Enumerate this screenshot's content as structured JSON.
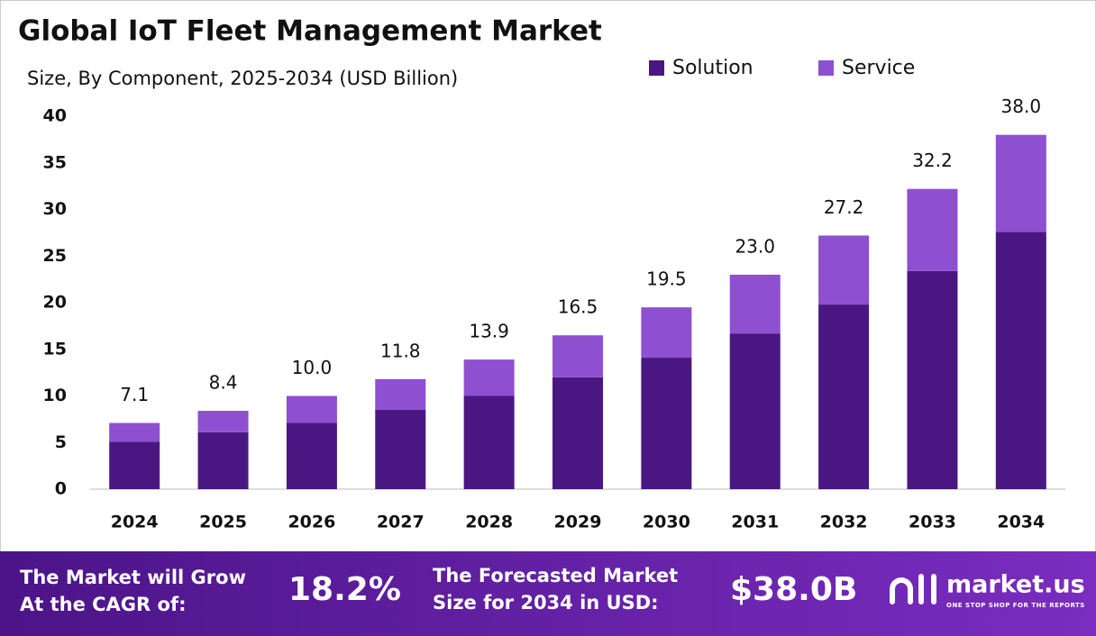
{
  "chart_data": {
    "type": "stacked_bar",
    "title": "Global IoT Fleet Management Market",
    "subtitle": "Size, By Component, 2025-2034 (USD Billion)",
    "categories": [
      "2024",
      "2025",
      "2026",
      "2027",
      "2028",
      "2029",
      "2030",
      "2031",
      "2032",
      "2033",
      "2034"
    ],
    "series": [
      {
        "name": "Solution",
        "color": "#4a1782",
        "values": [
          5.1,
          6.1,
          7.1,
          8.5,
          10.0,
          12.0,
          14.1,
          16.7,
          19.8,
          23.4,
          27.6
        ]
      },
      {
        "name": "Service",
        "color": "#8e4fd0",
        "values": [
          2.0,
          2.3,
          2.9,
          3.3,
          3.9,
          4.5,
          5.4,
          6.3,
          7.4,
          8.8,
          10.4
        ]
      }
    ],
    "totals": [
      7.1,
      8.4,
      10.0,
      11.8,
      13.9,
      16.5,
      19.5,
      23.0,
      27.2,
      32.2,
      38.0
    ],
    "total_labels": [
      "7.1",
      "8.4",
      "10.0",
      "11.8",
      "13.9",
      "16.5",
      "19.5",
      "23.0",
      "27.2",
      "32.2",
      "38.0"
    ],
    "ylim": [
      0,
      40
    ],
    "yticks": [
      0,
      5,
      10,
      15,
      20,
      25,
      30,
      35,
      40
    ],
    "grid": false
  },
  "footer": {
    "cagr_text": [
      "The Market will Grow",
      "At the CAGR of:"
    ],
    "cagr_value": "18.2%",
    "forecast_text": [
      "The Forecasted Market",
      "Size for 2034 in USD:"
    ],
    "forecast_value": "$38.0B",
    "brand": "market.us",
    "tagline": "ONE STOP SHOP FOR THE REPORTS"
  }
}
